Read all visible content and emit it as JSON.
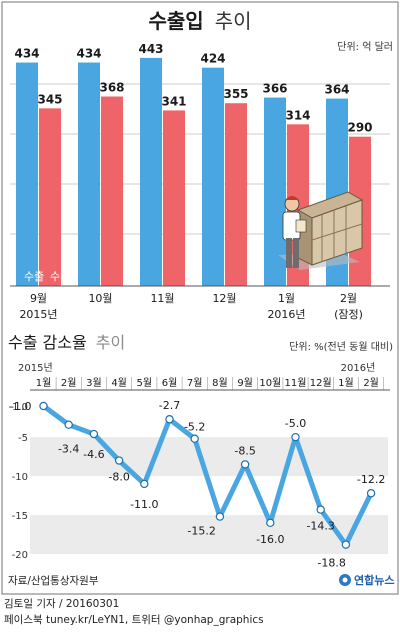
{
  "chart_data": [
    {
      "type": "bar",
      "title_main": "수출입",
      "title_rest": "추이",
      "unit": "단위: 억 달러",
      "categories": [
        "9월",
        "10월",
        "11월",
        "12월",
        "1월",
        "2월"
      ],
      "sublabels": [
        "2015년",
        "",
        "",
        "",
        "2016년",
        "(잠정)"
      ],
      "series": [
        {
          "name": "수출",
          "values": [
            434,
            434,
            443,
            424,
            366,
            364
          ],
          "color": "#4aa6e0"
        },
        {
          "name": "수입",
          "values": [
            345,
            368,
            341,
            355,
            314,
            290
          ],
          "color": "#ee6468"
        }
      ],
      "ylim": [
        0,
        470
      ]
    },
    {
      "type": "line",
      "title_main": "수출 감소율",
      "title_rest": "추이",
      "unit": "단위: %(전년 동월 대비)",
      "year_labels": [
        "2015년",
        "2016년"
      ],
      "categories": [
        "1월",
        "2월",
        "3월",
        "4월",
        "5월",
        "6월",
        "7월",
        "8월",
        "9월",
        "10월",
        "11월",
        "12월",
        "1월",
        "2월"
      ],
      "values": [
        -1.0,
        -3.4,
        -4.6,
        -8.0,
        -11.0,
        -2.7,
        -5.2,
        -15.2,
        -8.5,
        -16.0,
        -5.0,
        -14.3,
        -18.8,
        -12.2
      ],
      "value_labels": [
        "-1.0",
        "-3.4",
        "-4.6",
        "-8.0",
        "-11.0",
        "-2.7",
        "-5.2",
        "-15.2",
        "-8.5",
        "-16.0",
        "-5.0",
        "-14.3",
        "-18.8",
        "-12.2"
      ],
      "yticks": [
        "-1.0",
        "-5",
        "-10",
        "-15",
        "-20"
      ],
      "ytick_values": [
        -1,
        -5,
        -10,
        -15,
        -20
      ],
      "ylim": [
        -20,
        -1
      ],
      "line_color": "#4aa6e0"
    }
  ],
  "source": "자료/산업통상자원부",
  "logo": "연합뉴스",
  "credit_line1": "김토일 기자 / 20160301",
  "credit_line2": "페이스북 tuney.kr/LeYN1, 트위터 @yonhap_graphics"
}
